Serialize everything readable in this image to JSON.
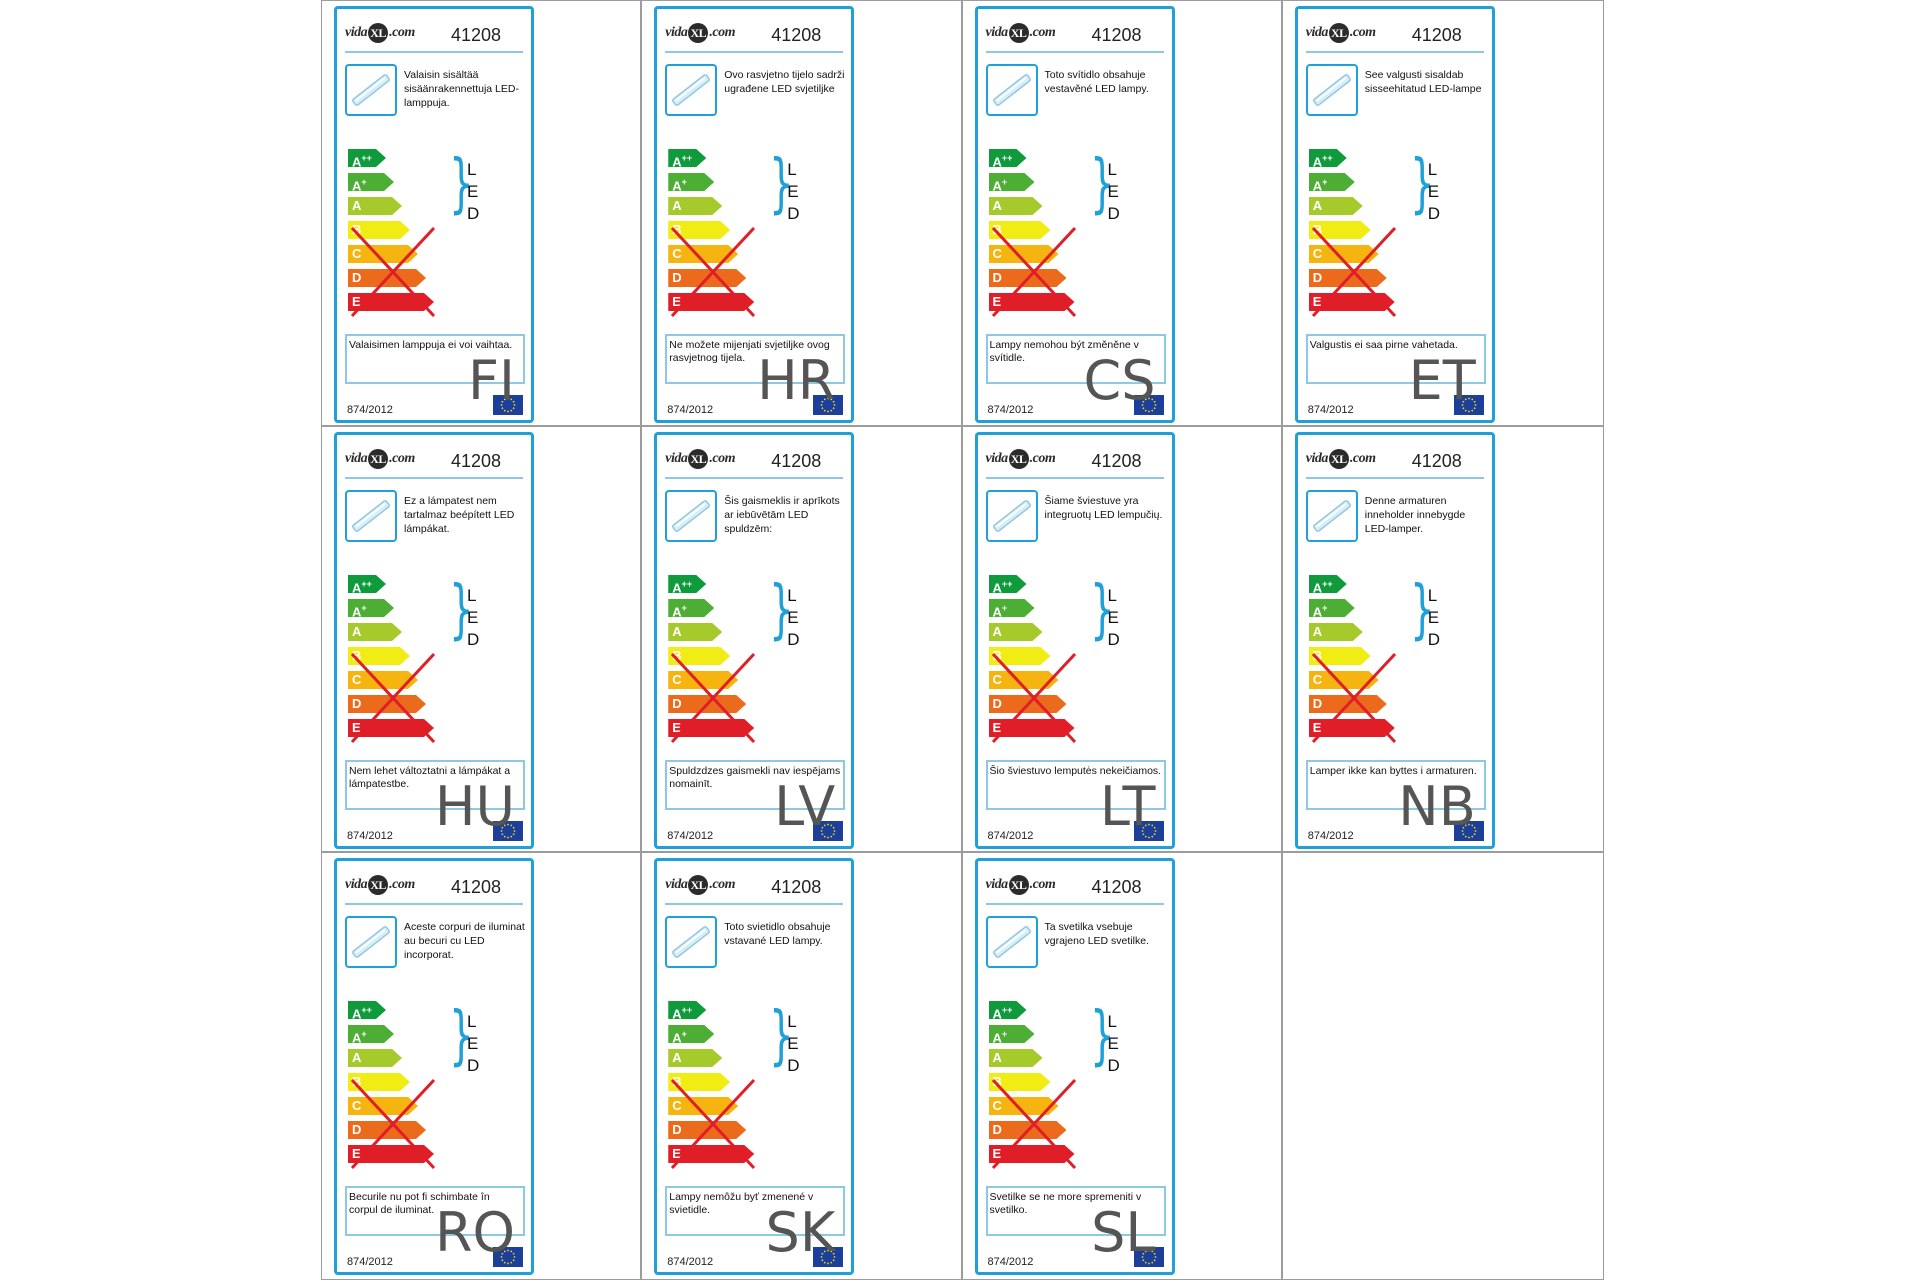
{
  "colors": {
    "label_border": "#1fa0d8",
    "grid_line": "#9c9c9c",
    "A++": "#0f9a3c",
    "A+": "#4dae35",
    "A": "#a6c92c",
    "B": "#f2ec15",
    "C": "#f6b411",
    "D": "#ec6a1c",
    "E": "#e01e27",
    "cross": "#e01e27",
    "eu_flag": "#1b3f9b"
  },
  "brand": {
    "prefix": "vida",
    "mark": "XL",
    "suffix": ".com"
  },
  "model_number": "41208",
  "energy_classes": [
    "A++",
    "A+",
    "A",
    "B",
    "C",
    "D",
    "E"
  ],
  "compatible_led_letters": [
    "L",
    "E",
    "D"
  ],
  "regulation": "874/2012",
  "labels": [
    {
      "lang": "FI",
      "desc": "Valaisin sisältää sisäänrakennettuja LED-lamppuja.",
      "footer": "Valaisimen lamppuja ei voi vaihtaa."
    },
    {
      "lang": "HR",
      "desc": "Ovo rasvjetno tijelo sadrži ugrađene LED svjetiljke",
      "footer": "Ne možete mijenjati svjetiljke ovog rasvjetnog tijela."
    },
    {
      "lang": "CS",
      "desc": "Toto svítidlo obsahuje vestavěné LED lampy.",
      "footer": "Lampy nemohou být změněne v svítidle."
    },
    {
      "lang": "ET",
      "desc": "See valgusti sisaldab sisseehitatud LED-lampe",
      "footer": "Valgustis ei saa pirne vahetada."
    },
    {
      "lang": "HU",
      "desc": "Ez a lámpatest nem tartalmaz beépített LED lámpákat.",
      "footer": "Nem lehet változtatni a lámpákat a lámpatestbe."
    },
    {
      "lang": "LV",
      "desc": "Šis gaismeklis ir aprīkots ar iebūvētām LED spuldzēm:",
      "footer": "Spuldzdzes gaismekli nav iespējams nomainīt."
    },
    {
      "lang": "LT",
      "desc": "Šiame šviestuve yra integruotų LED lempučių.",
      "footer": "Šio šviestuvo lemputės nekeičiamos."
    },
    {
      "lang": "NB",
      "desc": "Denne armaturen inneholder innebygde LED-lamper.",
      "footer": "Lamper ikke kan byttes i armaturen."
    },
    {
      "lang": "RO",
      "desc": "Aceste corpuri de iluminat au becuri cu LED incorporat.",
      "footer": "Becurile nu pot fi schimbate în corpul de iluminat."
    },
    {
      "lang": "SK",
      "desc": "Toto svietidlo obsahuje vstavané LED lampy.",
      "footer": "Lampy nemôžu byť zmenené v svietidle."
    },
    {
      "lang": "SL",
      "desc": "Ta svetilka vsebuje vgrajeno LED svetilke.",
      "footer": "Svetilke se ne more spremeniti v svetilko."
    }
  ]
}
